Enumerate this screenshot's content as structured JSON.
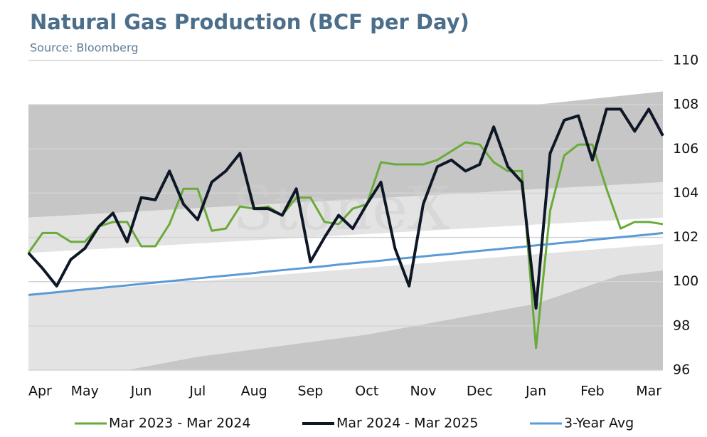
{
  "chart_data": {
    "type": "line",
    "title": "Natural Gas Production (BCF per Day)",
    "subtitle": "Source: Bloomberg",
    "watermark": "StoneX",
    "x": [
      0,
      0.25,
      0.5,
      0.75,
      1,
      1.25,
      1.5,
      1.75,
      2,
      2.25,
      2.5,
      2.75,
      3,
      3.25,
      3.5,
      3.75,
      4,
      4.25,
      4.5,
      4.75,
      5,
      5.25,
      5.5,
      5.75,
      6,
      6.25,
      6.5,
      6.75,
      7,
      7.25,
      7.5,
      7.75,
      8,
      8.25,
      8.5,
      8.75,
      9,
      9.25,
      9.5,
      9.75,
      10,
      10.25,
      10.5,
      10.75,
      11,
      11.25
    ],
    "xlim": [
      0,
      11.25
    ],
    "xticks": [
      {
        "value": 0,
        "label": "Apr"
      },
      {
        "value": 1,
        "label": "May"
      },
      {
        "value": 2,
        "label": "Jun"
      },
      {
        "value": 3,
        "label": "Jul"
      },
      {
        "value": 4,
        "label": "Aug"
      },
      {
        "value": 5,
        "label": "Sep"
      },
      {
        "value": 6,
        "label": "Oct"
      },
      {
        "value": 7,
        "label": "Nov"
      },
      {
        "value": 8,
        "label": "Dec"
      },
      {
        "value": 9,
        "label": "Jan"
      },
      {
        "value": 10,
        "label": "Feb"
      },
      {
        "value": 11,
        "label": "Mar"
      }
    ],
    "ylim": [
      96,
      110
    ],
    "yticks": [
      96,
      98,
      100,
      102,
      104,
      106,
      108,
      110
    ],
    "grid": true,
    "legend": "bottom",
    "bands": [
      {
        "color": "#c6c6c6",
        "x": [
          0,
          9,
          11.25
        ],
        "upper": [
          108,
          108,
          108.6
        ],
        "lower": [
          102.9,
          104.0,
          104.5
        ]
      },
      {
        "color": "#e3e3e3",
        "x": [
          0,
          11.25
        ],
        "upper": [
          102.9,
          104.5
        ],
        "lower": [
          101.3,
          102.9
        ]
      },
      {
        "color": "#e3e3e3",
        "x": [
          0,
          11.25
        ],
        "upper": [
          99.4,
          101.7
        ],
        "lower": [
          96,
          96
        ]
      },
      {
        "color": "#c6c6c6",
        "x": [
          1.75,
          3,
          6,
          9,
          10.5,
          11.25
        ],
        "upper": [
          96,
          96.6,
          97.6,
          99.0,
          100.3,
          100.5
        ],
        "lower": [
          96,
          96,
          96,
          96,
          96,
          96
        ]
      }
    ],
    "series": [
      {
        "name": "Mar 2023 - Mar 2024",
        "color": "#6aaa3a",
        "width": 3,
        "values": [
          101.3,
          102.2,
          102.2,
          101.8,
          101.8,
          102.5,
          102.7,
          102.7,
          101.6,
          101.6,
          102.6,
          104.2,
          104.2,
          102.3,
          102.4,
          103.4,
          103.3,
          103.4,
          103.0,
          103.8,
          103.8,
          102.7,
          102.6,
          103.3,
          103.5,
          105.4,
          105.3,
          105.3,
          105.3,
          105.5,
          105.9,
          106.3,
          106.2,
          105.4,
          105.0,
          105.0,
          97.0,
          103.2,
          105.7,
          106.2,
          106.2,
          104.2,
          102.4,
          102.7,
          102.7,
          102.6
        ]
      },
      {
        "name": "Mar 2024 - Mar 2025",
        "color": "#0e1726",
        "width": 4,
        "values": [
          101.3,
          100.6,
          99.8,
          101.0,
          101.5,
          102.5,
          103.1,
          101.8,
          103.8,
          103.7,
          105.0,
          103.5,
          102.8,
          104.5,
          105.0,
          105.8,
          103.3,
          103.3,
          103.0,
          104.2,
          100.9,
          102.0,
          103.0,
          102.4,
          103.5,
          104.5,
          101.5,
          99.8,
          103.5,
          105.2,
          105.5,
          105.0,
          105.3,
          107.0,
          105.2,
          104.5,
          98.8,
          105.8,
          107.3,
          107.5,
          105.5,
          107.8,
          107.8,
          106.8,
          107.8,
          106.6
        ]
      },
      {
        "name": "3-Year Avg",
        "color": "#5b9bd5",
        "width": 3,
        "values": [
          99.4,
          99.46,
          99.52,
          99.59,
          99.65,
          99.71,
          99.77,
          99.83,
          99.9,
          99.96,
          100.02,
          100.08,
          100.15,
          100.21,
          100.27,
          100.33,
          100.39,
          100.46,
          100.52,
          100.58,
          100.64,
          100.7,
          100.77,
          100.83,
          100.89,
          100.95,
          101.02,
          101.08,
          101.14,
          101.2,
          101.26,
          101.33,
          101.39,
          101.45,
          101.51,
          101.57,
          101.64,
          101.7,
          101.76,
          101.82,
          101.89,
          101.95,
          102.01,
          102.07,
          102.13,
          102.2
        ]
      }
    ]
  }
}
